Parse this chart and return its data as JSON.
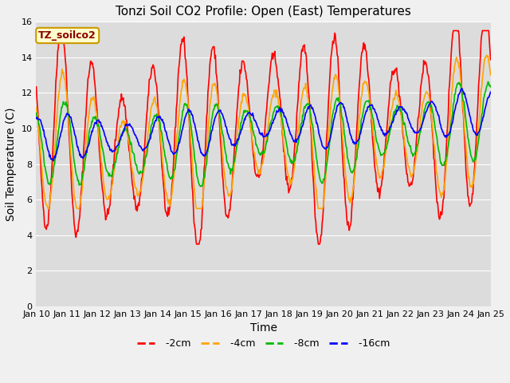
{
  "title": "Tonzi Soil CO2 Profile: Open (East) Temperatures",
  "xlabel": "Time",
  "ylabel": "Soil Temperature (C)",
  "ylim": [
    0,
    16
  ],
  "xlim_days": [
    0,
    15
  ],
  "yticks": [
    0,
    2,
    4,
    6,
    8,
    10,
    12,
    14,
    16
  ],
  "xtick_labels": [
    "Jan 10",
    "Jan 11",
    "Jan 12",
    "Jan 13",
    "Jan 14",
    "Jan 15",
    "Jan 16",
    "Jan 17",
    "Jan 18",
    "Jan 19",
    "Jan 20",
    "Jan 21",
    "Jan 22",
    "Jan 23",
    "Jan 24",
    "Jan 25"
  ],
  "colors": {
    "-2cm": "#ff0000",
    "-4cm": "#ffa500",
    "-8cm": "#00bb00",
    "-16cm": "#0000ff"
  },
  "legend_title": "TZ_soilco2",
  "background_color": "#dcdcdc",
  "fig_facecolor": "#f0f0f0",
  "title_fontsize": 11,
  "axis_label_fontsize": 10,
  "tick_fontsize": 8,
  "line_width": 1.2,
  "grid_color": "#ffffff",
  "legend_fontsize": 9
}
